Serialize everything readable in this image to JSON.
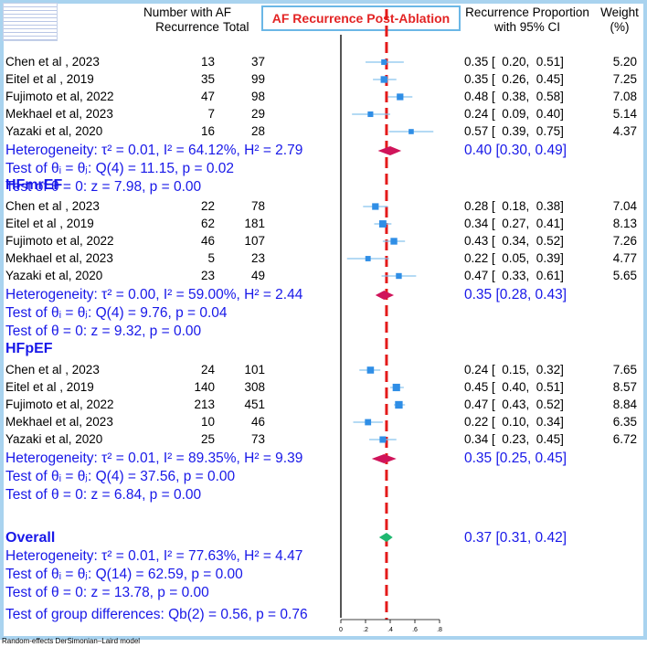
{
  "header": {
    "col_af": "Number with AF",
    "col_af2": "Recurrence",
    "col_total": "Total",
    "title": "AF Recurrence Post-Ablation",
    "col_rp": "Recurrence Proportion",
    "col_rp2": "with 95% CI",
    "col_w": "Weight",
    "col_w2": "(%)"
  },
  "groups": [
    {
      "name": "",
      "studies": [
        {
          "study": "Chen et al , 2023",
          "n": "13",
          "total": "37",
          "ci": "0.35 [  0.20,  0.51]",
          "weight": "5.20"
        },
        {
          "study": "Eitel et al , 2019",
          "n": "35",
          "total": "99",
          "ci": "0.35 [  0.26,  0.45]",
          "weight": "7.25"
        },
        {
          "study": "Fujimoto et al, 2022",
          "n": "47",
          "total": "98",
          "ci": "0.48 [  0.38,  0.58]",
          "weight": "7.08"
        },
        {
          "study": "Mekhael et al, 2023",
          "n": "7",
          "total": "29",
          "ci": "0.24 [  0.09,  0.40]",
          "weight": "5.14"
        },
        {
          "study": "Yazaki et al, 2020",
          "n": "16",
          "total": "28",
          "ci": "0.57 [  0.39,  0.75]",
          "weight": "4.37"
        }
      ],
      "het": "Heterogeneity: τ² = 0.01, I² = 64.12%, H² = 2.79",
      "test_q": "Test of θᵢ = θⱼ: Q(4) = 11.15, p = 0.02",
      "test_z": "Test of θ = 0: z = 7.98, p = 0.00",
      "pooled": "0.40 [0.30, 0.49]"
    },
    {
      "name": "HFmrEF",
      "studies": [
        {
          "study": "Chen et al , 2023",
          "n": "22",
          "total": "78",
          "ci": "0.28 [  0.18,  0.38]",
          "weight": "7.04"
        },
        {
          "study": "Eitel et al , 2019",
          "n": "62",
          "total": "181",
          "ci": "0.34 [  0.27,  0.41]",
          "weight": "8.13"
        },
        {
          "study": "Fujimoto et al, 2022",
          "n": "46",
          "total": "107",
          "ci": "0.43 [  0.34,  0.52]",
          "weight": "7.26"
        },
        {
          "study": "Mekhael et al, 2023",
          "n": "5",
          "total": "23",
          "ci": "0.22 [  0.05,  0.39]",
          "weight": "4.77"
        },
        {
          "study": "Yazaki et al, 2020",
          "n": "23",
          "total": "49",
          "ci": "0.47 [  0.33,  0.61]",
          "weight": "5.65"
        }
      ],
      "het": "Heterogeneity: τ² = 0.00, I² = 59.00%, H² = 2.44",
      "test_q": "Test of θᵢ = θⱼ: Q(4) = 9.76, p = 0.04",
      "test_z": "Test of θ = 0: z = 9.32, p = 0.00",
      "pooled": "0.35 [0.28, 0.43]"
    },
    {
      "name": "HFpEF",
      "studies": [
        {
          "study": "Chen et al , 2023",
          "n": "24",
          "total": "101",
          "ci": "0.24 [  0.15,  0.32]",
          "weight": "7.65"
        },
        {
          "study": "Eitel et al , 2019",
          "n": "140",
          "total": "308",
          "ci": "0.45 [  0.40,  0.51]",
          "weight": "8.57"
        },
        {
          "study": "Fujimoto et al, 2022",
          "n": "213",
          "total": "451",
          "ci": "0.47 [  0.43,  0.52]",
          "weight": "8.84"
        },
        {
          "study": "Mekhael et al, 2023",
          "n": "10",
          "total": "46",
          "ci": "0.22 [  0.10,  0.34]",
          "weight": "6.35"
        },
        {
          "study": "Yazaki et al, 2020",
          "n": "25",
          "total": "73",
          "ci": "0.34 [  0.23,  0.45]",
          "weight": "6.72"
        }
      ],
      "het": "Heterogeneity: τ² = 0.01, I² = 89.35%, H² = 9.39",
      "test_q": "Test of θᵢ = θⱼ: Q(4) = 37.56, p = 0.00",
      "test_z": "Test of θ = 0: z = 6.84, p = 0.00",
      "pooled": "0.35 [0.25, 0.45]"
    }
  ],
  "overall": {
    "label": "Overall",
    "het": "Heterogeneity: τ² = 0.01, I² = 77.63%, H² = 4.47",
    "test_q": "Test of θᵢ = θⱼ: Q(14) = 62.59, p = 0.00",
    "test_z": "Test of θ = 0: z = 13.78, p = 0.00",
    "pooled": "0.37 [0.31, 0.42]",
    "group_diff": "Test of group differences: Qb(2) = 0.56, p = 0.76"
  },
  "footer": "Random-effects DerSimonian–Laird model",
  "colors": {
    "text_blue": "#1818e8",
    "study_marker": "#2f8ee6",
    "ci_line": "#88c4ee",
    "subgroup_diamond": "#d0145a",
    "overall_diamond": "#1fb870",
    "reference_line": "#e41a1a",
    "frame": "#a9d3ef"
  },
  "chart_data": {
    "type": "forest",
    "xlim": [
      0,
      0.8
    ],
    "xticks": [
      "0",
      ".2",
      ".4",
      ".6",
      ".8"
    ],
    "overall_line": 0.37,
    "groups": [
      {
        "name": "",
        "points": [
          [
            0.35,
            0.2,
            0.51,
            5.2
          ],
          [
            0.35,
            0.26,
            0.45,
            7.25
          ],
          [
            0.48,
            0.38,
            0.58,
            7.08
          ],
          [
            0.24,
            0.09,
            0.4,
            5.14
          ],
          [
            0.57,
            0.39,
            0.75,
            4.37
          ]
        ],
        "pooled": [
          0.4,
          0.3,
          0.49
        ]
      },
      {
        "name": "HFmrEF",
        "points": [
          [
            0.28,
            0.18,
            0.38,
            7.04
          ],
          [
            0.34,
            0.27,
            0.41,
            8.13
          ],
          [
            0.43,
            0.34,
            0.52,
            7.26
          ],
          [
            0.22,
            0.05,
            0.39,
            4.77
          ],
          [
            0.47,
            0.33,
            0.61,
            5.65
          ]
        ],
        "pooled": [
          0.35,
          0.28,
          0.43
        ]
      },
      {
        "name": "HFpEF",
        "points": [
          [
            0.24,
            0.15,
            0.32,
            7.65
          ],
          [
            0.45,
            0.4,
            0.51,
            8.57
          ],
          [
            0.47,
            0.43,
            0.52,
            8.84
          ],
          [
            0.22,
            0.1,
            0.34,
            6.35
          ],
          [
            0.34,
            0.23,
            0.45,
            6.72
          ]
        ],
        "pooled": [
          0.35,
          0.25,
          0.45
        ]
      }
    ],
    "overall": [
      0.37,
      0.31,
      0.42
    ]
  }
}
